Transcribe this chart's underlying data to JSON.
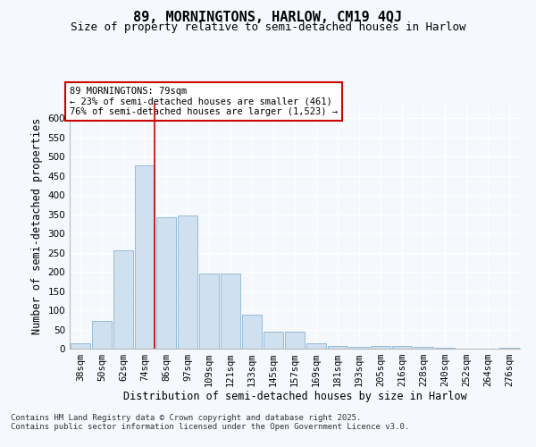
{
  "title": "89, MORNINGTONS, HARLOW, CM19 4QJ",
  "subtitle": "Size of property relative to semi-detached houses in Harlow",
  "xlabel": "Distribution of semi-detached houses by size in Harlow",
  "ylabel": "Number of semi-detached properties",
  "categories": [
    "38sqm",
    "50sqm",
    "62sqm",
    "74sqm",
    "86sqm",
    "97sqm",
    "109sqm",
    "121sqm",
    "133sqm",
    "145sqm",
    "157sqm",
    "169sqm",
    "181sqm",
    "193sqm",
    "205sqm",
    "216sqm",
    "228sqm",
    "240sqm",
    "252sqm",
    "264sqm",
    "276sqm"
  ],
  "values": [
    15,
    73,
    255,
    478,
    342,
    347,
    196,
    196,
    88,
    45,
    45,
    15,
    8,
    5,
    8,
    8,
    5,
    2,
    1,
    1,
    2
  ],
  "bar_color": "#cfe0f0",
  "bar_edge_color": "#8ab4d4",
  "vline_color": "#cc0000",
  "annotation_text": "89 MORNINGTONS: 79sqm\n← 23% of semi-detached houses are smaller (461)\n76% of semi-detached houses are larger (1,523) →",
  "annotation_box_edge": "#cc0000",
  "footer": "Contains HM Land Registry data © Crown copyright and database right 2025.\nContains public sector information licensed under the Open Government Licence v3.0.",
  "ylim": [
    0,
    640
  ],
  "yticks": [
    0,
    50,
    100,
    150,
    200,
    250,
    300,
    350,
    400,
    450,
    500,
    550,
    600
  ],
  "background_color": "#f5f8fc",
  "plot_bg_color": "#f5f8fc",
  "title_fontsize": 11,
  "subtitle_fontsize": 9,
  "axis_label_fontsize": 8.5,
  "tick_fontsize": 7.5,
  "annotation_fontsize": 7.5,
  "footer_fontsize": 6.5
}
